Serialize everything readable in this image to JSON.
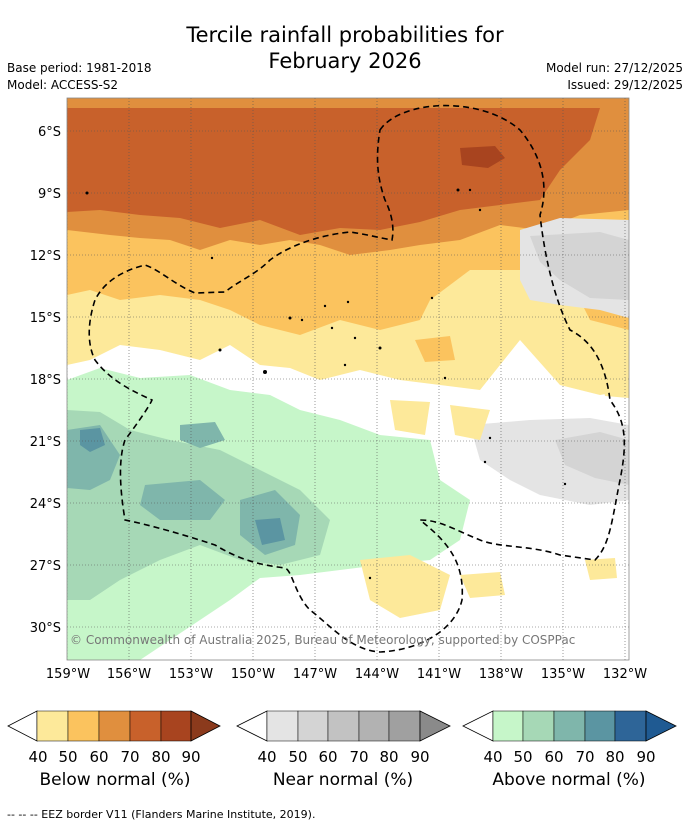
{
  "title_line1": "Tercile rainfall probabilities for",
  "title_line2": "February 2026",
  "base_period": "Base period: 1981-2018",
  "model": "Model: ACCESS-S2",
  "model_run": "Model run: 27/12/2025",
  "issued": "Issued: 29/12/2025",
  "copyright": "© Commonwealth of Australia 2025, Bureau of Meteorology, supported by COSPPac",
  "lat_labels": [
    "6°S",
    "9°S",
    "12°S",
    "15°S",
    "18°S",
    "21°S",
    "24°S",
    "27°S",
    "30°S"
  ],
  "lon_labels": [
    "159°W",
    "156°W",
    "153°W",
    "150°W",
    "147°W",
    "144°W",
    "141°W",
    "138°W",
    "135°W",
    "132°W"
  ],
  "colorbars": [
    {
      "label": "Below normal (%)",
      "ticks": [
        "40",
        "50",
        "60",
        "70",
        "80",
        "90"
      ],
      "colors": [
        "#fde99a",
        "#fbc35e",
        "#e08f3e",
        "#c8612b",
        "#a8441f",
        "#8b3a1c"
      ]
    },
    {
      "label": "Near normal (%)",
      "ticks": [
        "40",
        "50",
        "60",
        "70",
        "80",
        "90"
      ],
      "colors": [
        "#e4e4e4",
        "#d4d4d4",
        "#c2c2c2",
        "#b2b2b2",
        "#a0a0a0",
        "#8a8a8a"
      ]
    },
    {
      "label": "Above normal (%)",
      "ticks": [
        "40",
        "50",
        "60",
        "70",
        "80",
        "90"
      ],
      "colors": [
        "#c6f6c9",
        "#a6d8b6",
        "#7fb6ab",
        "#5b95a2",
        "#2e6598",
        "#1f5a92"
      ]
    }
  ],
  "footnote": "--  --  -- EEZ border V11 (Flanders Marine Institute, 2019)."
}
